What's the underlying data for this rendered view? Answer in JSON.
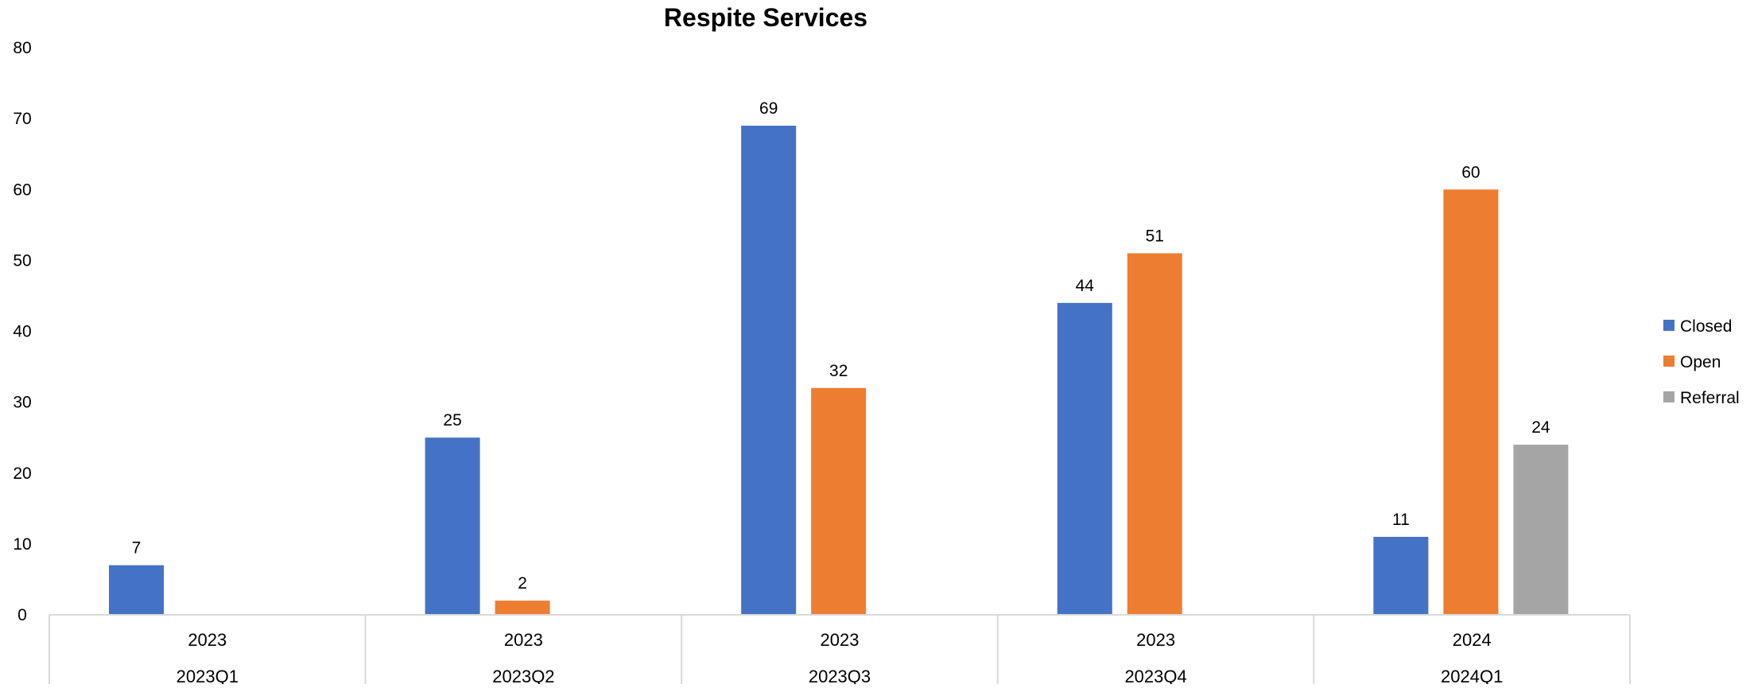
{
  "chart_data": {
    "type": "bar",
    "title": "Respite Services",
    "xlabel": "",
    "ylabel": "",
    "ylim": [
      0,
      80
    ],
    "yticks": [
      0,
      10,
      20,
      30,
      40,
      50,
      60,
      70,
      80
    ],
    "grid": false,
    "legend_position": "right",
    "categories": [
      {
        "year": "2023",
        "quarter": "2023Q1"
      },
      {
        "year": "2023",
        "quarter": "2023Q2"
      },
      {
        "year": "2023",
        "quarter": "2023Q3"
      },
      {
        "year": "2023",
        "quarter": "2023Q4"
      },
      {
        "year": "2024",
        "quarter": "2024Q1"
      }
    ],
    "series": [
      {
        "name": "Closed",
        "color": "#4472C4",
        "values": [
          7,
          25,
          69,
          44,
          11
        ]
      },
      {
        "name": "Open",
        "color": "#ED7D31",
        "values": [
          null,
          2,
          32,
          51,
          60
        ]
      },
      {
        "name": "Referral",
        "color": "#A5A5A5",
        "values": [
          null,
          null,
          null,
          null,
          24
        ]
      }
    ]
  }
}
